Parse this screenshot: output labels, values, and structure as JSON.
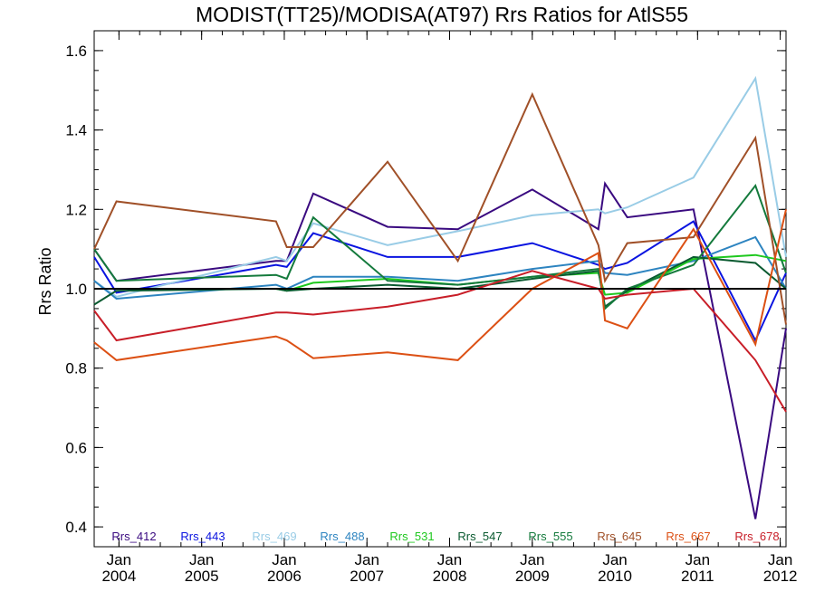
{
  "chart_data": {
    "type": "line",
    "title": "MODIST(TT25)/MODISA(AT97)  Rrs Ratios for AtlS55",
    "xlabel": "",
    "ylabel": "Rrs Ratio",
    "ylim": [
      0.35,
      1.65
    ],
    "xlim": [
      2003.7,
      2012.07
    ],
    "y_ticks": [
      0.4,
      0.6,
      0.8,
      1.0,
      1.2,
      1.4,
      1.6
    ],
    "y_tick_labels": [
      "0.4",
      "0.6",
      "0.8",
      "1.0",
      "1.2",
      "1.4",
      "1.6"
    ],
    "x_ticks": [
      2004.0,
      2005.0,
      2006.0,
      2007.0,
      2008.0,
      2009.0,
      2010.0,
      2011.0,
      2012.0
    ],
    "x_tick_labels": [
      {
        "month": "Jan",
        "year": "2004"
      },
      {
        "month": "Jan",
        "year": "2005"
      },
      {
        "month": "Jan",
        "year": "2006"
      },
      {
        "month": "Jan",
        "year": "2007"
      },
      {
        "month": "Jan",
        "year": "2008"
      },
      {
        "month": "Jan",
        "year": "2009"
      },
      {
        "month": "Jan",
        "year": "2010"
      },
      {
        "month": "Jan",
        "year": "2011"
      },
      {
        "month": "Jan",
        "year": "2012"
      }
    ],
    "reference_line": {
      "y": 1.0,
      "color": "#000000"
    },
    "grid": false,
    "legend_position": "bottom",
    "x": [
      2003.7,
      2003.97,
      2005.9,
      2006.03,
      2006.35,
      2007.25,
      2008.1,
      2009.0,
      2009.8,
      2009.88,
      2010.15,
      2010.95,
      2011.7,
      2012.07
    ],
    "series": [
      {
        "name": "Rrs_412",
        "color": "#3a0a80",
        "values": [
          1.1,
          1.02,
          1.07,
          1.07,
          1.24,
          1.156,
          1.15,
          1.25,
          1.15,
          1.265,
          1.18,
          1.2,
          0.42,
          0.9
        ]
      },
      {
        "name": "Rrs_443",
        "color": "#0a14e0",
        "values": [
          1.08,
          0.99,
          1.06,
          1.055,
          1.14,
          1.08,
          1.08,
          1.115,
          1.06,
          1.05,
          1.065,
          1.17,
          0.87,
          1.04
        ]
      },
      {
        "name": "Rrs_469",
        "color": "#99cce6",
        "values": [
          1.02,
          0.98,
          1.08,
          1.07,
          1.165,
          1.11,
          1.145,
          1.185,
          1.2,
          1.19,
          1.205,
          1.28,
          1.53,
          1.08
        ]
      },
      {
        "name": "Rrs_488",
        "color": "#2d84c0",
        "values": [
          1.02,
          0.975,
          1.01,
          1.0,
          1.03,
          1.03,
          1.02,
          1.05,
          1.07,
          1.04,
          1.035,
          1.07,
          1.13,
          1.0
        ]
      },
      {
        "name": "Rrs_531",
        "color": "#1ec81e",
        "values": [
          1.0,
          1.0,
          1.0,
          0.995,
          1.015,
          1.025,
          1.01,
          1.03,
          1.04,
          0.985,
          0.99,
          1.075,
          1.085,
          1.07
        ]
      },
      {
        "name": "Rrs_547",
        "color": "#0a5a30",
        "values": [
          0.96,
          0.995,
          1.0,
          0.995,
          1.0,
          1.01,
          1.0,
          1.025,
          1.045,
          0.955,
          0.995,
          1.08,
          1.065,
          1.0
        ]
      },
      {
        "name": "Rrs_555",
        "color": "#147a3c",
        "values": [
          1.1,
          1.02,
          1.035,
          1.025,
          1.18,
          1.02,
          1.01,
          1.03,
          1.05,
          0.95,
          1.0,
          1.06,
          1.26,
          1.04
        ]
      },
      {
        "name": "Rrs_645",
        "color": "#a05028",
        "values": [
          1.1,
          1.22,
          1.17,
          1.105,
          1.105,
          1.32,
          1.07,
          1.49,
          1.11,
          1.02,
          1.115,
          1.13,
          1.38,
          0.91
        ]
      },
      {
        "name": "Rrs_667",
        "color": "#dc5014",
        "values": [
          0.865,
          0.82,
          0.88,
          0.87,
          0.825,
          0.84,
          0.82,
          1.0,
          1.09,
          0.92,
          0.9,
          1.15,
          0.86,
          1.2
        ]
      },
      {
        "name": "Rrs_678",
        "color": "#c81e28",
        "values": [
          0.945,
          0.87,
          0.94,
          0.94,
          0.935,
          0.955,
          0.985,
          1.045,
          1.0,
          0.975,
          0.985,
          1.0,
          0.82,
          0.69
        ]
      }
    ]
  }
}
